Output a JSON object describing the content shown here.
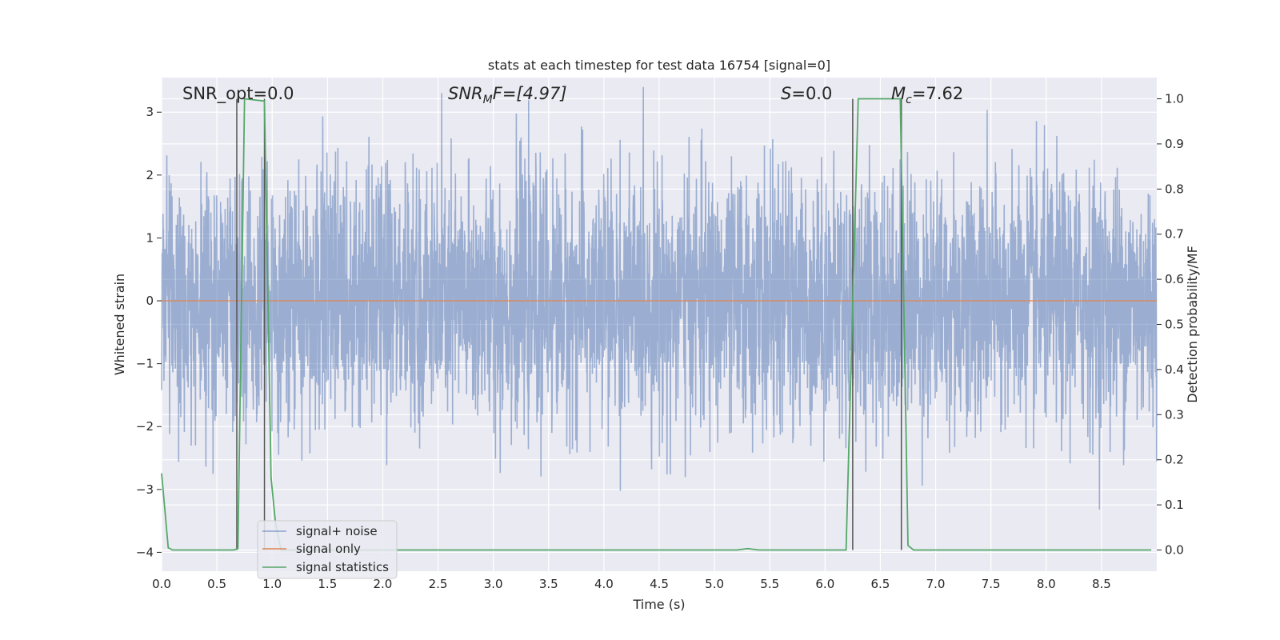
{
  "chart_data": {
    "type": "line",
    "title": "stats at each timestep for test data 16754 [signal=0]",
    "xlabel": "Time (s)",
    "ylabel": "Whitened strain",
    "ylabel_right": "Detection probability/MF",
    "xlim": [
      0.0,
      9.0
    ],
    "ylim": [
      -4.3,
      3.55
    ],
    "ylim_right": [
      -0.047,
      1.047
    ],
    "x_ticks": [
      "0.0",
      "0.5",
      "1.0",
      "1.5",
      "2.0",
      "2.5",
      "3.0",
      "3.5",
      "4.0",
      "4.5",
      "5.0",
      "5.5",
      "6.0",
      "6.5",
      "7.0",
      "7.5",
      "8.0",
      "8.5"
    ],
    "y_ticks": [
      "3",
      "2",
      "1",
      "0",
      "−1",
      "−2",
      "−3",
      "−4"
    ],
    "y_ticks_right": [
      "1.0",
      "0.9",
      "0.8",
      "0.7",
      "0.6",
      "0.5",
      "0.4",
      "0.3",
      "0.2",
      "0.1",
      "0.0"
    ],
    "grid": true,
    "legend_position": "lower-left",
    "annotations": {
      "snr_opt": "SNR_opt=0.0",
      "snr_mf_main": "SNR",
      "snr_mf_sub": "M",
      "snr_mf_rest": "F=[4.97]",
      "s_main": "S",
      "s_rest": "=0.0",
      "mc_main": "M",
      "mc_sub": "c",
      "mc_rest": "=7.62"
    },
    "series": [
      {
        "name": "signal+ noise",
        "color": "#4c72b0",
        "axis": "left",
        "kind": "noise",
        "sample_rate_hz": 2048,
        "duration_s": 9.0,
        "approx_std": 1.0,
        "approx_range": [
          -3.6,
          3.4
        ]
      },
      {
        "name": "signal only",
        "color": "#dd8452",
        "axis": "left",
        "x": [
          0.0,
          9.0
        ],
        "y": [
          0.0,
          0.0
        ]
      },
      {
        "name": "signal statistics",
        "color": "#55a868",
        "axis": "right",
        "x": [
          0.0,
          0.06,
          0.1,
          0.2,
          0.5,
          0.65,
          0.69,
          0.75,
          0.93,
          0.99,
          1.03,
          1.08,
          2.0,
          3.0,
          4.0,
          5.0,
          5.2,
          5.3,
          5.4,
          5.6,
          6.19,
          6.3,
          6.68,
          6.75,
          6.8,
          7.0,
          8.0,
          8.95
        ],
        "y": [
          0.17,
          0.005,
          0.0,
          0.0,
          0.0,
          0.0,
          0.003,
          1.0,
          0.995,
          0.16,
          0.06,
          0.0,
          0.0,
          0.0,
          0.0,
          0.0,
          0.0,
          0.003,
          0.0,
          0.0,
          0.0,
          1.0,
          1.0,
          0.01,
          0.0,
          0.0,
          0.0,
          0.0
        ]
      }
    ],
    "vertical_markers": {
      "color": "#555555",
      "axis": "right",
      "x": [
        0.68,
        0.93,
        6.25,
        6.69
      ],
      "y_range": [
        0.0,
        1.0
      ]
    }
  }
}
